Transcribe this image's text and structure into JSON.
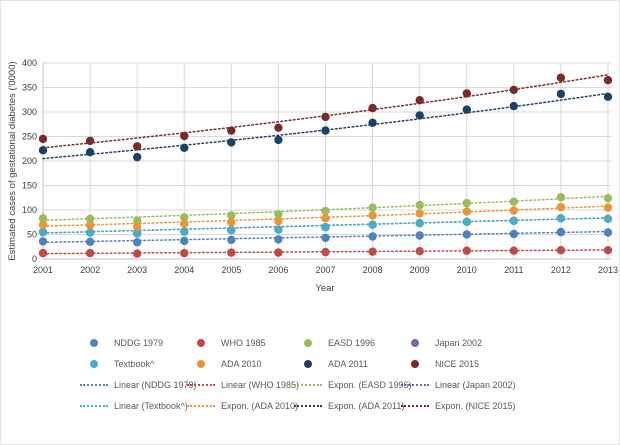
{
  "chart_data": {
    "type": "scatter",
    "title": "",
    "xlabel": "Year",
    "ylabel": "Estimated cases of gestational diabetes ('0000)",
    "x": [
      2001,
      2002,
      2003,
      2004,
      2005,
      2006,
      2007,
      2008,
      2009,
      2010,
      2011,
      2012,
      2013
    ],
    "ylim": [
      0,
      400
    ],
    "ytick_step": 50,
    "grid": true,
    "legend_position": "bottom",
    "series": [
      {
        "name": "NDDG 1979",
        "color": "#4F81BD",
        "values": [
          36,
          35,
          34,
          37,
          39,
          40,
          43,
          46,
          48,
          50,
          51,
          55,
          54
        ]
      },
      {
        "name": "WHO 1985",
        "color": "#BE4B48",
        "values": [
          12,
          12,
          11,
          12,
          13,
          13,
          14,
          15,
          16,
          17,
          17,
          18,
          18
        ]
      },
      {
        "name": "EASD 1996",
        "color": "#9BBB59",
        "values": [
          83,
          82,
          78,
          85,
          89,
          91,
          98,
          105,
          110,
          114,
          117,
          126,
          124
        ]
      },
      {
        "name": "Japan 2002",
        "color": "#8064A2",
        "values": [
          55,
          54,
          52,
          56,
          59,
          60,
          65,
          70,
          73,
          76,
          78,
          83,
          82
        ],
        "overlaps": "Textbook^ (not separately visible)"
      },
      {
        "name": "Textbook^",
        "color": "#4BACC6",
        "values": [
          55,
          54,
          52,
          56,
          59,
          60,
          65,
          70,
          73,
          76,
          78,
          83,
          82
        ]
      },
      {
        "name": "ADA 2010",
        "color": "#E8963A",
        "values": [
          70,
          69,
          66,
          72,
          75,
          77,
          83,
          89,
          93,
          97,
          99,
          106,
          105
        ]
      },
      {
        "name": "ADA 2011",
        "color": "#1F4066",
        "values": [
          222,
          218,
          208,
          227,
          238,
          243,
          262,
          278,
          293,
          305,
          312,
          337,
          331
        ]
      },
      {
        "name": "NICE 2015",
        "color": "#772C2A",
        "values": [
          245,
          241,
          230,
          251,
          262,
          268,
          290,
          308,
          324,
          338,
          345,
          370,
          365
        ]
      }
    ],
    "trendlines": [
      {
        "name": "Linear (NDDG 1979)",
        "type": "linear",
        "color": "#4F81BD",
        "start": 34,
        "end": 56
      },
      {
        "name": "Linear (WHO 1985)",
        "type": "linear",
        "color": "#BE4B48",
        "start": 11,
        "end": 18.5
      },
      {
        "name": "Expon. (EASD 1996)",
        "type": "exponential",
        "color": "#9BBB59",
        "start": 79,
        "end": 128
      },
      {
        "name": "Linear (Japan 2002)",
        "type": "linear",
        "color": "#8064A2",
        "start": 53,
        "end": 84
      },
      {
        "name": "Linear (Textbook^)",
        "type": "linear",
        "color": "#4BACC6",
        "start": 53,
        "end": 84
      },
      {
        "name": "Expon. (ADA 2010)",
        "type": "exponential",
        "color": "#E8963A",
        "start": 67,
        "end": 108
      },
      {
        "name": "Expon. (ADA 2011)",
        "type": "exponential",
        "color": "#1F4066",
        "start": 205,
        "end": 338
      },
      {
        "name": "Expon. (NICE 2015)",
        "type": "exponential",
        "color": "#772C2A",
        "start": 227,
        "end": 376
      }
    ]
  },
  "style": {
    "gridline_color": "#D9D9D9",
    "axis_line_color": "#BFBFBF",
    "tick_text_color": "#404040",
    "legend_text_color": "#595959"
  }
}
